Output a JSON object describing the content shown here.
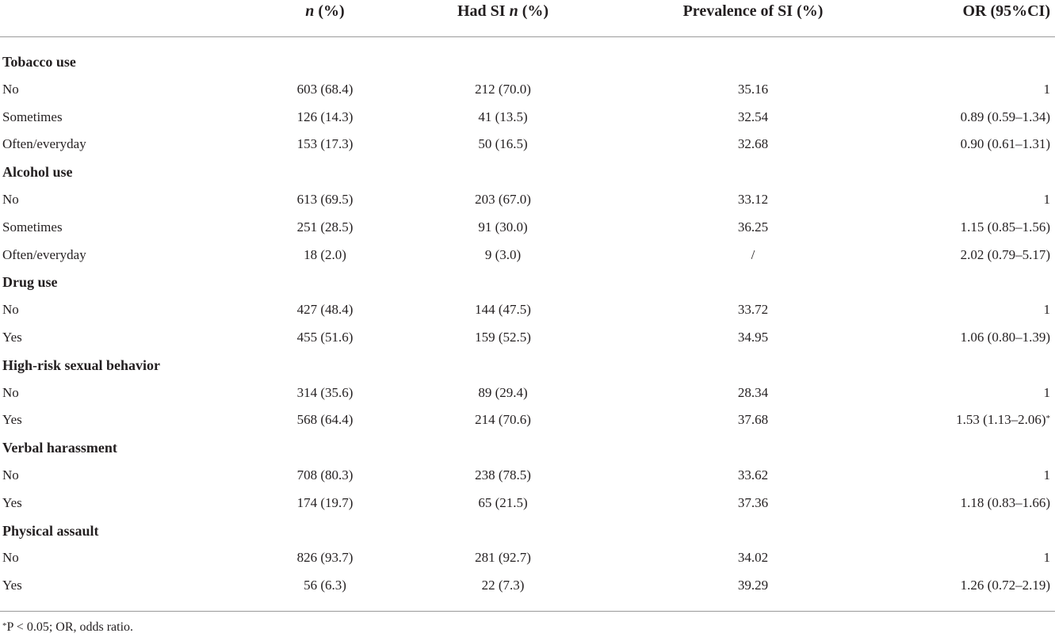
{
  "header": {
    "col1_italic": "n",
    "col1_rest": " (%)",
    "col2_main": "Had SI ",
    "col2_italic": "n",
    "col2_rest": " (%)",
    "col3": "Prevalence of SI (%)",
    "col4": "OR (95%CI)"
  },
  "rows": [
    {
      "type": "section",
      "label": "Tobacco use"
    },
    {
      "type": "data",
      "label": "No",
      "n": "603 (68.4)",
      "si": "212 (70.0)",
      "prev": "35.16",
      "or": "1"
    },
    {
      "type": "data",
      "label": "Sometimes",
      "n": "126 (14.3)",
      "si": "41 (13.5)",
      "prev": "32.54",
      "or": "0.89 (0.59–1.34)"
    },
    {
      "type": "data",
      "label": "Often/everyday",
      "n": "153 (17.3)",
      "si": "50 (16.5)",
      "prev": "32.68",
      "or": "0.90 (0.61–1.31)"
    },
    {
      "type": "section",
      "label": "Alcohol use"
    },
    {
      "type": "data",
      "label": "No",
      "n": "613 (69.5)",
      "si": "203 (67.0)",
      "prev": "33.12",
      "or": "1"
    },
    {
      "type": "data",
      "label": "Sometimes",
      "n": "251 (28.5)",
      "si": "91 (30.0)",
      "prev": "36.25",
      "or": "1.15 (0.85–1.56)"
    },
    {
      "type": "data",
      "label": "Often/everyday",
      "n": "18 (2.0)",
      "si": "9 (3.0)",
      "prev": "/",
      "or": "2.02 (0.79–5.17)"
    },
    {
      "type": "section",
      "label": "Drug use"
    },
    {
      "type": "data",
      "label": "No",
      "n": "427 (48.4)",
      "si": "144 (47.5)",
      "prev": "33.72",
      "or": "1"
    },
    {
      "type": "data",
      "label": "Yes",
      "n": "455 (51.6)",
      "si": "159 (52.5)",
      "prev": "34.95",
      "or": "1.06 (0.80–1.39)"
    },
    {
      "type": "section",
      "label": "High-risk sexual behavior"
    },
    {
      "type": "data",
      "label": "No",
      "n": "314 (35.6)",
      "si": "89 (29.4)",
      "prev": "28.34",
      "or": "1"
    },
    {
      "type": "data",
      "label": "Yes",
      "n": "568 (64.4)",
      "si": "214 (70.6)",
      "prev": "37.68",
      "or": "1.53 (1.13–2.06)",
      "sup": "*"
    },
    {
      "type": "section",
      "label": "Verbal harassment"
    },
    {
      "type": "data",
      "label": "No",
      "n": "708 (80.3)",
      "si": "238 (78.5)",
      "prev": "33.62",
      "or": "1"
    },
    {
      "type": "data",
      "label": "Yes",
      "n": "174 (19.7)",
      "si": "65 (21.5)",
      "prev": "37.36",
      "or": "1.18 (0.83–1.66)"
    },
    {
      "type": "section",
      "label": "Physical assault"
    },
    {
      "type": "data",
      "label": "No",
      "n": "826 (93.7)",
      "si": "281 (92.7)",
      "prev": "34.02",
      "or": "1"
    },
    {
      "type": "data",
      "label": "Yes",
      "n": "56 (6.3)",
      "si": "22 (7.3)",
      "prev": "39.29",
      "or": "1.26 (0.72–2.19)"
    }
  ],
  "footnote": {
    "star": "*",
    "text": "P < 0.05; OR, odds ratio."
  }
}
